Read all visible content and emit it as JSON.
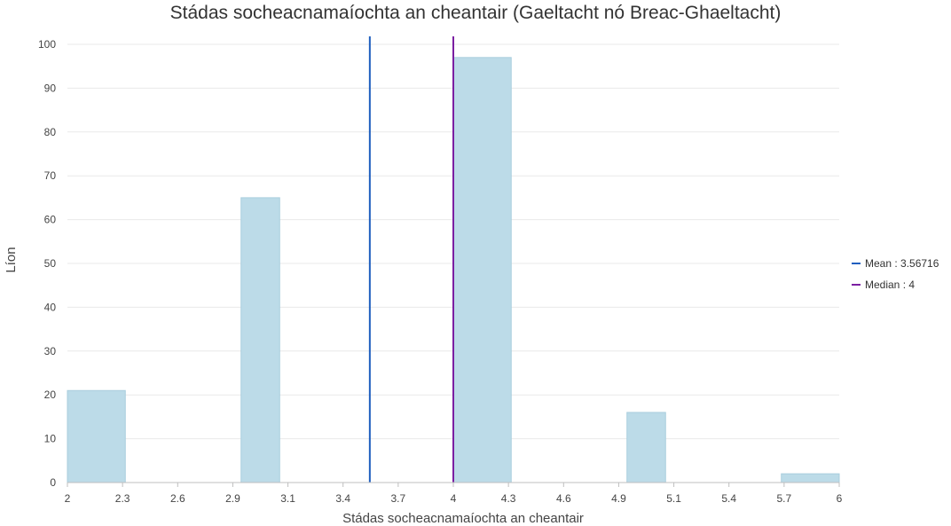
{
  "chart_data": {
    "type": "bar",
    "title": "Stádas socheacnamaíochta an cheantair (Gaeltacht nó Breac-Ghaeltacht)",
    "xlabel": "Stádas socheacnamaíochta an cheantair",
    "ylabel": "Líon",
    "xlim": [
      2,
      6
    ],
    "ylim": [
      0,
      100
    ],
    "x_ticks": [
      "2",
      "2.3",
      "2.6",
      "2.9",
      "3.1",
      "3.4",
      "3.7",
      "4",
      "4.3",
      "4.6",
      "4.9",
      "5.1",
      "5.4",
      "5.7",
      "6"
    ],
    "y_ticks": [
      0,
      10,
      20,
      30,
      40,
      50,
      60,
      70,
      80,
      90,
      100
    ],
    "grid": true,
    "bins": [
      {
        "x0": 2.0,
        "x1": 2.3,
        "count": 21
      },
      {
        "x0": 2.3,
        "x1": 2.6,
        "count": 0
      },
      {
        "x0": 2.6,
        "x1": 2.9,
        "count": 0
      },
      {
        "x0": 2.9,
        "x1": 3.1,
        "count": 65
      },
      {
        "x0": 3.1,
        "x1": 3.4,
        "count": 0
      },
      {
        "x0": 3.4,
        "x1": 3.7,
        "count": 0
      },
      {
        "x0": 3.7,
        "x1": 4.0,
        "count": 0
      },
      {
        "x0": 4.0,
        "x1": 4.3,
        "count": 97
      },
      {
        "x0": 4.3,
        "x1": 4.6,
        "count": 0
      },
      {
        "x0": 4.6,
        "x1": 4.9,
        "count": 0
      },
      {
        "x0": 4.9,
        "x1": 5.1,
        "count": 16
      },
      {
        "x0": 5.1,
        "x1": 5.4,
        "count": 0
      },
      {
        "x0": 5.4,
        "x1": 5.7,
        "count": 0
      },
      {
        "x0": 5.7,
        "x1": 6.0,
        "count": 2
      }
    ],
    "reference_lines": [
      {
        "label": "Mean : 3.56716",
        "value": 3.56716,
        "color": "#1f5fbf"
      },
      {
        "label": "Median : 4",
        "value": 4,
        "color": "#7b1fa2"
      }
    ],
    "legend_position": "right"
  }
}
